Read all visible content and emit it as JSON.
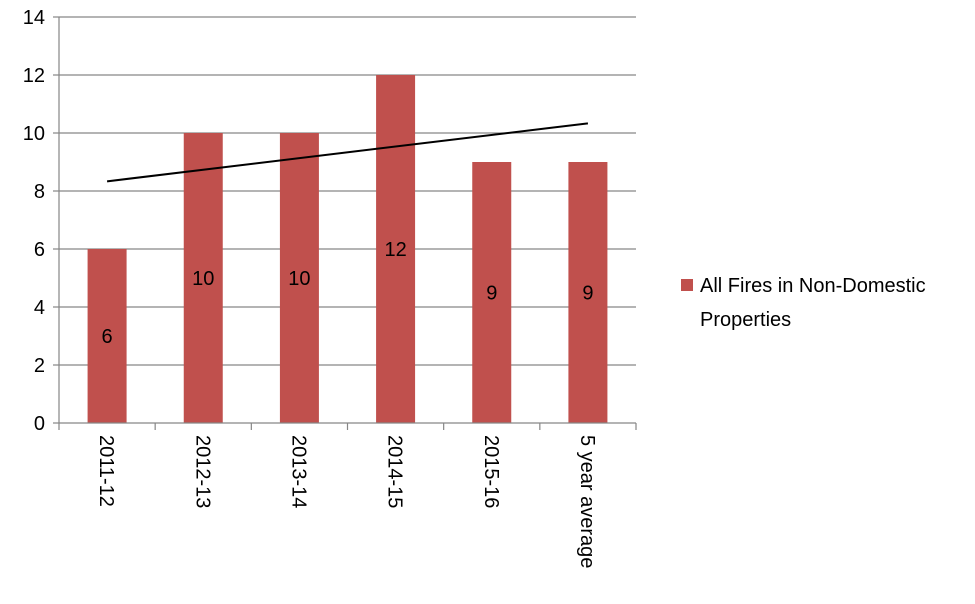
{
  "chart_data": {
    "type": "bar",
    "categories": [
      "2011-12",
      "2012-13",
      "2013-14",
      "2014-15",
      "2015-16",
      "5 year average"
    ],
    "series": [
      {
        "name": "All Fires in Non-Domestic Properties",
        "values": [
          6,
          10,
          10,
          12,
          9,
          9
        ],
        "color": "#C0504D"
      }
    ],
    "data_labels": [
      "6",
      "10",
      "10",
      "12",
      "9",
      "9"
    ],
    "trendline": {
      "type": "linear",
      "color": "#000000"
    },
    "ylim": [
      0,
      14
    ],
    "yticks": [
      0,
      2,
      4,
      6,
      8,
      10,
      12,
      14
    ],
    "ytick_labels": [
      "0",
      "2",
      "4",
      "6",
      "8",
      "10",
      "12",
      "14"
    ],
    "grid": true,
    "legend": {
      "position": "right",
      "lines": [
        "All Fires in Non-Domestic",
        "Properties"
      ]
    },
    "title": "",
    "xlabel": "",
    "ylabel": ""
  }
}
